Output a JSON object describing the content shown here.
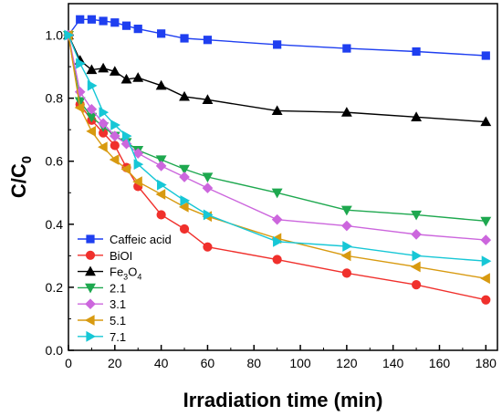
{
  "chart_data": {
    "type": "line",
    "xlabel": "Irradiation time (min)",
    "ylabel": "C/C",
    "ylabel_subscript": "0",
    "xlim": [
      0,
      185
    ],
    "ylim": [
      0,
      1.1
    ],
    "xticks": [
      0,
      20,
      40,
      60,
      80,
      100,
      120,
      140,
      160,
      180
    ],
    "yticks": [
      0.0,
      0.2,
      0.4,
      0.6,
      0.8,
      1.0
    ],
    "grid": false,
    "legend_position": "bottom-left",
    "series": [
      {
        "name": "Caffeic acid",
        "subscript": "",
        "color": "#1f3ff0",
        "marker": "square",
        "x": [
          0,
          5,
          10,
          15,
          20,
          25,
          30,
          40,
          50,
          60,
          90,
          120,
          150,
          180
        ],
        "y": [
          1.0,
          1.05,
          1.05,
          1.045,
          1.04,
          1.03,
          1.02,
          1.005,
          0.99,
          0.985,
          0.97,
          0.958,
          0.948,
          0.935
        ]
      },
      {
        "name": "BiOI",
        "subscript": "",
        "color": "#f0302c",
        "marker": "circle",
        "x": [
          0,
          5,
          10,
          15,
          20,
          25,
          30,
          40,
          50,
          60,
          90,
          120,
          150,
          180
        ],
        "y": [
          1.0,
          0.78,
          0.73,
          0.69,
          0.65,
          0.58,
          0.52,
          0.43,
          0.385,
          0.328,
          0.288,
          0.245,
          0.208,
          0.16
        ]
      },
      {
        "name": "Fe",
        "subscript": "3",
        "name2": "O",
        "subscript2": "4",
        "color": "#000000",
        "marker": "triangle-up",
        "x": [
          0,
          5,
          10,
          15,
          20,
          25,
          30,
          40,
          50,
          60,
          90,
          120,
          150,
          180
        ],
        "y": [
          1.0,
          0.92,
          0.89,
          0.895,
          0.885,
          0.86,
          0.865,
          0.84,
          0.805,
          0.795,
          0.76,
          0.755,
          0.74,
          0.725
        ]
      },
      {
        "name": "2.1",
        "subscript": "",
        "color": "#1ea84f",
        "marker": "triangle-down",
        "x": [
          0,
          5,
          10,
          15,
          20,
          25,
          30,
          40,
          50,
          60,
          90,
          120,
          150,
          180
        ],
        "y": [
          1.0,
          0.79,
          0.74,
          0.71,
          0.68,
          0.66,
          0.635,
          0.605,
          0.575,
          0.55,
          0.5,
          0.445,
          0.43,
          0.41
        ]
      },
      {
        "name": "3.1",
        "subscript": "",
        "color": "#cc66dd",
        "marker": "diamond",
        "x": [
          0,
          5,
          10,
          15,
          20,
          25,
          30,
          40,
          50,
          60,
          90,
          120,
          150,
          180
        ],
        "y": [
          1.0,
          0.82,
          0.765,
          0.72,
          0.68,
          0.655,
          0.625,
          0.585,
          0.55,
          0.515,
          0.415,
          0.395,
          0.368,
          0.35
        ]
      },
      {
        "name": "5.1",
        "subscript": "",
        "color": "#d89a10",
        "marker": "triangle-left",
        "x": [
          0,
          5,
          10,
          15,
          20,
          25,
          30,
          40,
          50,
          60,
          90,
          120,
          150,
          180
        ],
        "y": [
          1.0,
          0.77,
          0.695,
          0.645,
          0.605,
          0.575,
          0.535,
          0.495,
          0.455,
          0.425,
          0.355,
          0.3,
          0.265,
          0.228
        ]
      },
      {
        "name": "7.1",
        "subscript": "",
        "color": "#17c7d6",
        "marker": "triangle-right",
        "x": [
          0,
          5,
          10,
          15,
          20,
          25,
          30,
          40,
          50,
          60,
          90,
          120,
          150,
          180
        ],
        "y": [
          1.0,
          0.91,
          0.84,
          0.755,
          0.715,
          0.68,
          0.59,
          0.525,
          0.475,
          0.43,
          0.345,
          0.33,
          0.3,
          0.283
        ]
      }
    ]
  }
}
